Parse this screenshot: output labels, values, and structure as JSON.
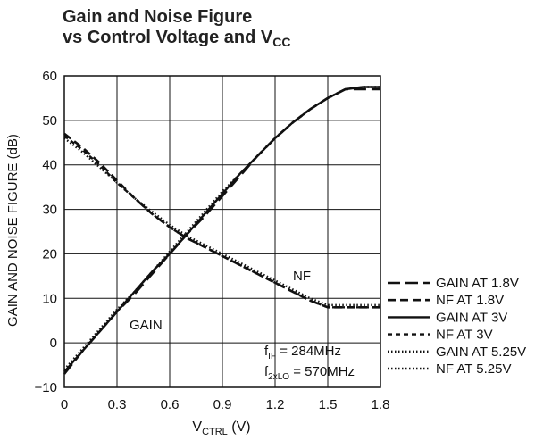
{
  "title": {
    "line1": "Gain and Noise Figure",
    "line2_prefix": "vs Control Voltage and V",
    "line2_sub": "CC"
  },
  "chart_data": {
    "type": "line",
    "xlabel_main": "V",
    "xlabel_sub": "CTRL",
    "xlabel_unit": " (V)",
    "ylabel": "GAIN AND NOISE FIGURE (dB)",
    "xlim": [
      0,
      1.8
    ],
    "ylim": [
      -10,
      60
    ],
    "x_ticks": [
      "0",
      "0.3",
      "0.6",
      "0.9",
      "1.2",
      "1.5",
      "1.8"
    ],
    "y_ticks": [
      "60",
      "50",
      "40",
      "30",
      "20",
      "10",
      "0",
      "−10"
    ],
    "grid": true,
    "curve_labels": {
      "gain": "GAIN",
      "nf": "NF"
    },
    "annotations": {
      "fif_main": "f",
      "fif_sub": "IF",
      "fif_val": " = 284MHz",
      "f2lo_main": "f",
      "f2lo_sub": "2xLO",
      "f2lo_val": " = 570MHz"
    },
    "series": [
      {
        "name": "GAIN AT 1.8V",
        "style": "long-dash",
        "color": "#111111",
        "x": [
          0,
          0.1,
          0.2,
          0.3,
          0.4,
          0.5,
          0.6,
          0.7,
          0.8,
          0.9,
          1.0,
          1.1,
          1.2,
          1.3,
          1.4,
          1.5,
          1.6,
          1.7,
          1.8
        ],
        "y": [
          -7,
          -2,
          2.5,
          7,
          11,
          15.5,
          20,
          24.5,
          28.5,
          33,
          37.5,
          42,
          46,
          49.5,
          52.5,
          55,
          57,
          57,
          57
        ]
      },
      {
        "name": "NF AT 1.8V",
        "style": "medium-dash",
        "color": "#111111",
        "x": [
          0,
          0.1,
          0.2,
          0.3,
          0.4,
          0.5,
          0.6,
          0.7,
          0.8,
          0.9,
          1.0,
          1.1,
          1.2,
          1.3,
          1.4,
          1.5,
          1.6,
          1.7,
          1.8
        ],
        "y": [
          47,
          44,
          40.5,
          36.5,
          32.5,
          29,
          26,
          23.5,
          21.5,
          19.5,
          17.5,
          15.5,
          13.5,
          11.5,
          9.5,
          8,
          8,
          8,
          8
        ]
      },
      {
        "name": "GAIN AT 3V",
        "style": "solid",
        "color": "#111111",
        "x": [
          0,
          0.1,
          0.2,
          0.3,
          0.4,
          0.5,
          0.6,
          0.7,
          0.8,
          0.9,
          1.0,
          1.1,
          1.2,
          1.3,
          1.4,
          1.5,
          1.6,
          1.7,
          1.8
        ],
        "y": [
          -6.5,
          -2,
          2.5,
          7,
          11.5,
          16,
          20,
          24.5,
          29,
          33.5,
          38,
          42,
          46,
          49.5,
          52.5,
          55,
          57,
          57.5,
          57.5
        ]
      },
      {
        "name": "NF AT 3V",
        "style": "short-dash",
        "color": "#111111",
        "x": [
          0,
          0.1,
          0.2,
          0.3,
          0.4,
          0.5,
          0.6,
          0.7,
          0.8,
          0.9,
          1.0,
          1.1,
          1.2,
          1.3,
          1.4,
          1.5,
          1.6,
          1.7,
          1.8
        ],
        "y": [
          46.5,
          43.5,
          40,
          36,
          32.5,
          29,
          26,
          23.5,
          21.5,
          19.5,
          17.5,
          15.5,
          13.5,
          11.5,
          9.5,
          8,
          8,
          8,
          8
        ]
      },
      {
        "name": "GAIN AT 5.25V",
        "style": "dotted",
        "color": "#111111",
        "x": [
          0,
          0.1,
          0.2,
          0.3,
          0.4,
          0.5,
          0.6,
          0.7,
          0.8,
          0.9,
          1.0,
          1.1,
          1.2,
          1.3,
          1.4,
          1.5,
          1.6,
          1.7,
          1.8
        ],
        "y": [
          -6,
          -1.5,
          3,
          7.5,
          11.5,
          16,
          20.5,
          25,
          29.5,
          34,
          38,
          42,
          46,
          49.5,
          52.5,
          55,
          57,
          57.5,
          57.5
        ]
      },
      {
        "name": "NF AT 5.25V",
        "style": "dotted",
        "color": "#111111",
        "x": [
          0,
          0.1,
          0.2,
          0.3,
          0.4,
          0.5,
          0.6,
          0.7,
          0.8,
          0.9,
          1.0,
          1.1,
          1.2,
          1.3,
          1.4,
          1.5,
          1.6,
          1.7,
          1.8
        ],
        "y": [
          46,
          43,
          39.5,
          36,
          32.5,
          29.5,
          26.5,
          24,
          22,
          20,
          18,
          16,
          14,
          12,
          10,
          8.5,
          8.5,
          8.5,
          8.5
        ]
      }
    ]
  }
}
